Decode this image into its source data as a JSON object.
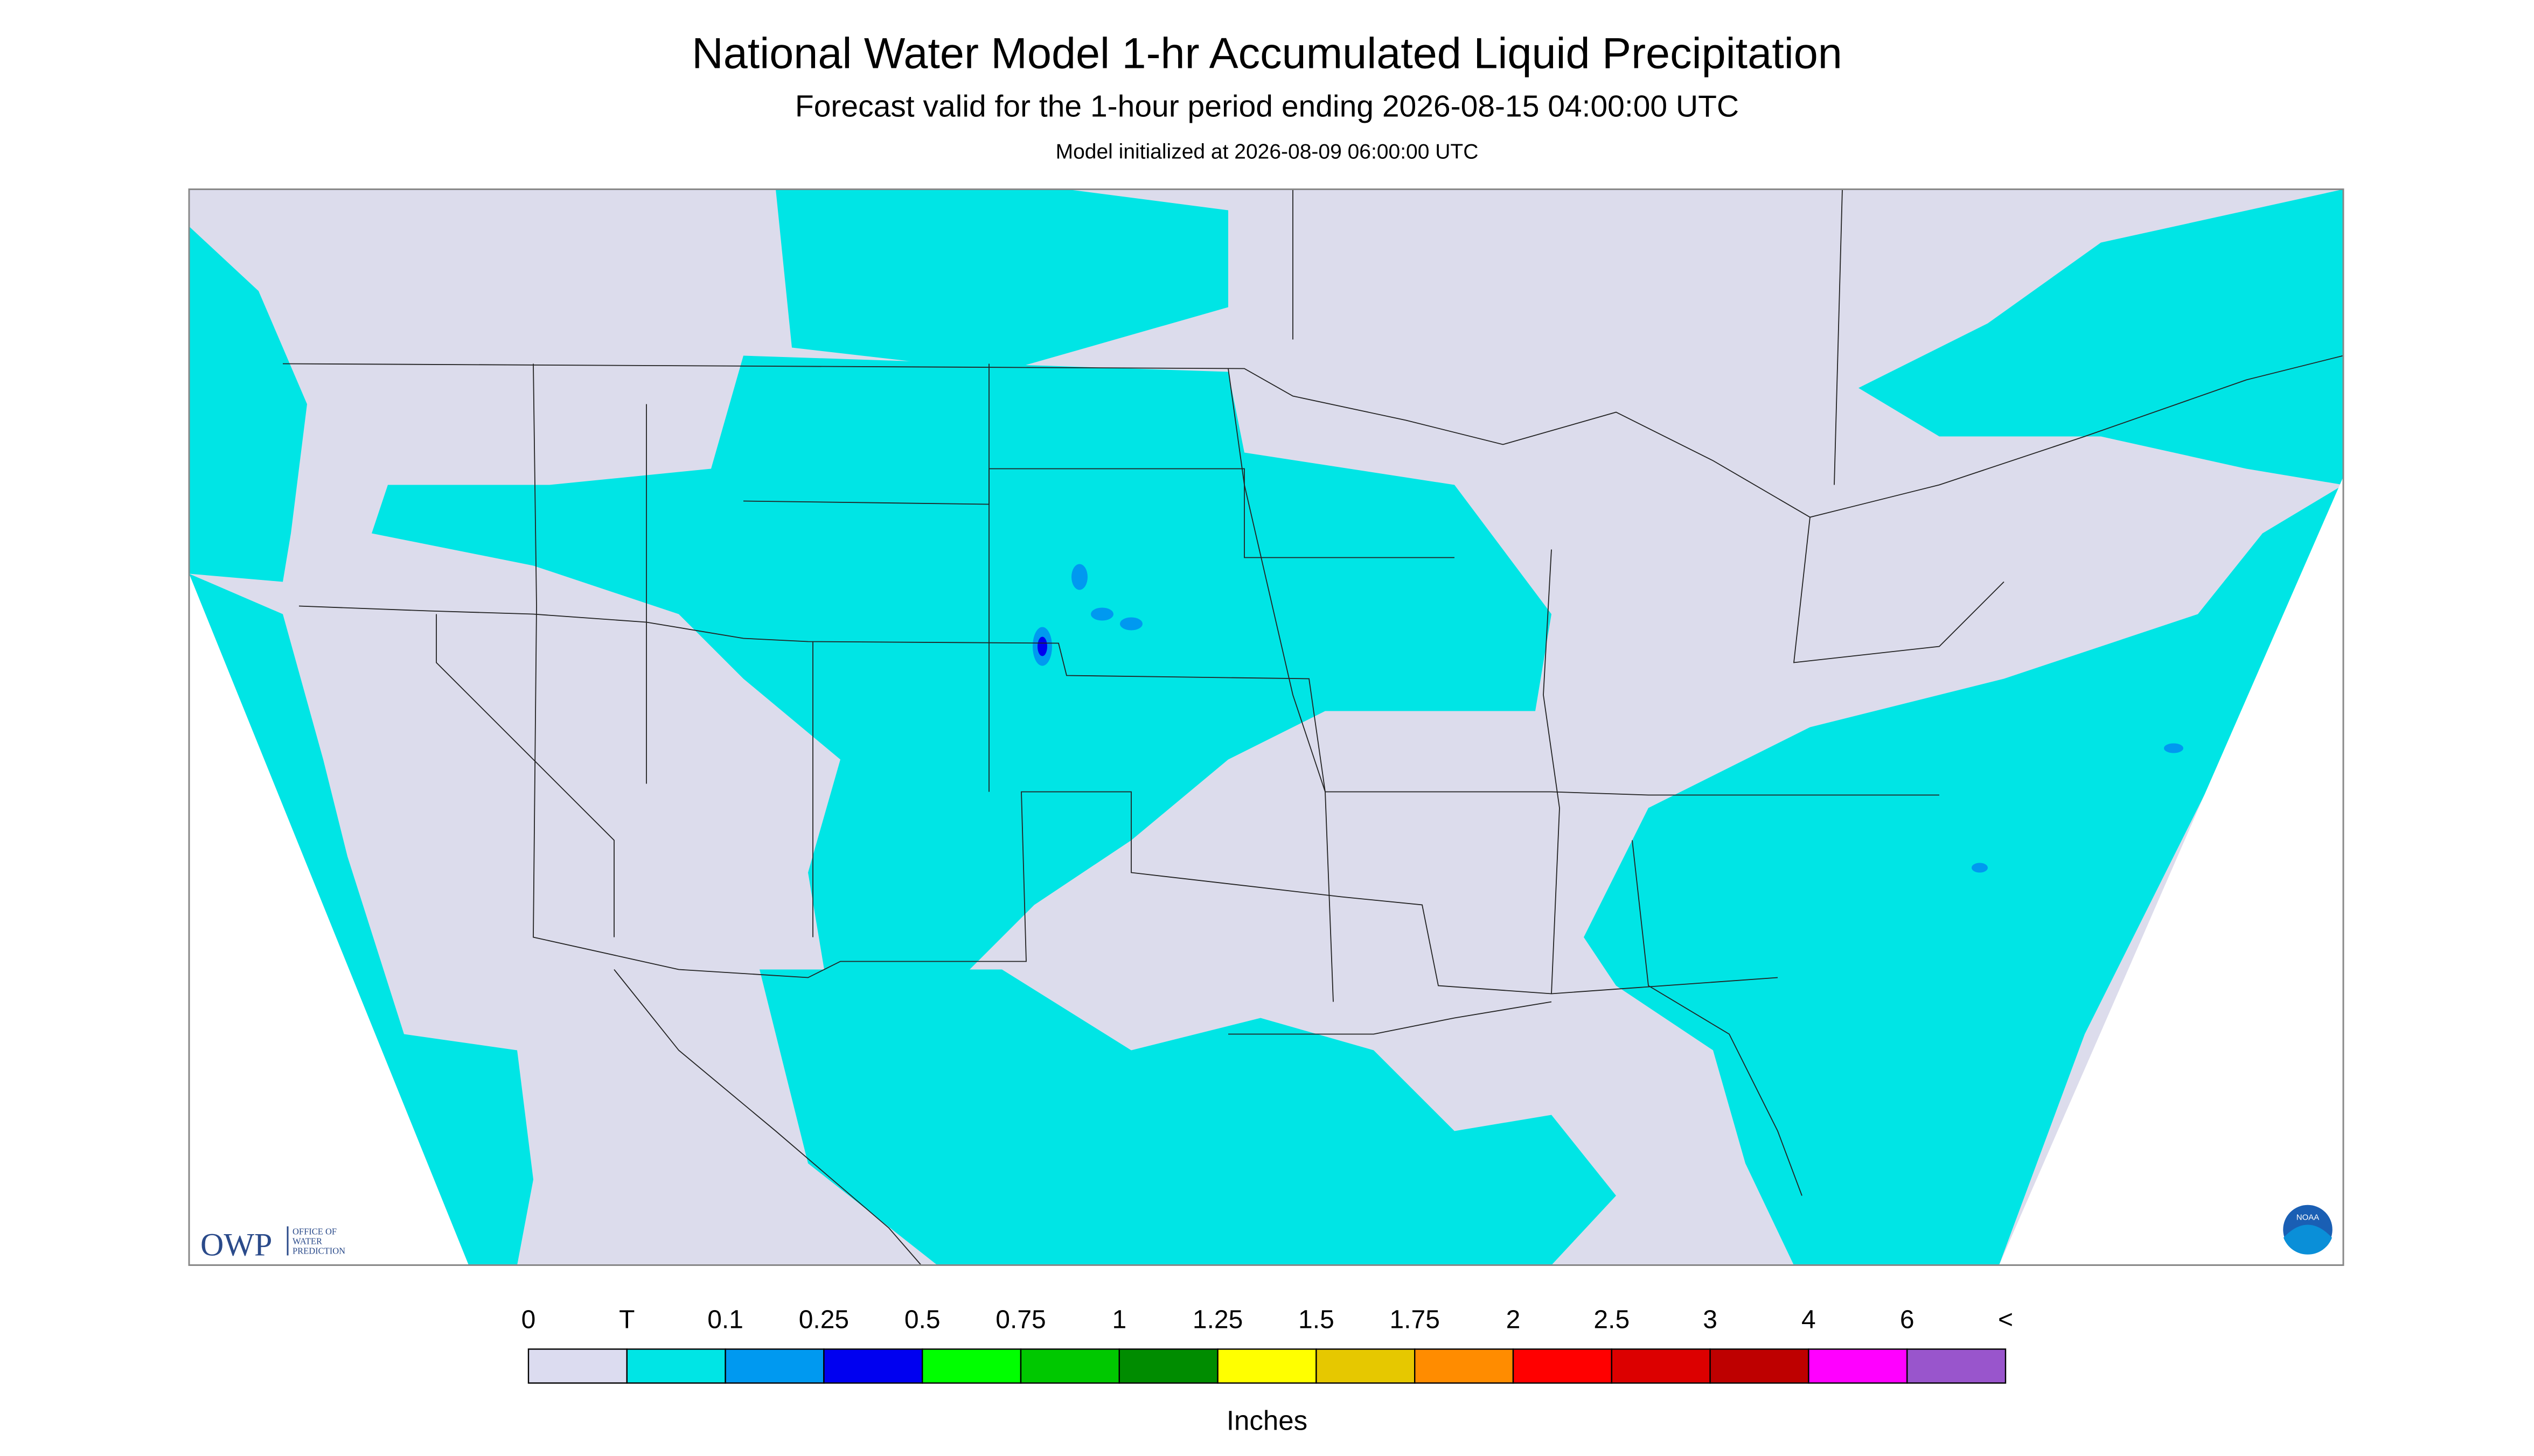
{
  "header": {
    "title": "National Water Model 1-hr Accumulated Liquid Precipitation",
    "subtitle": "Forecast valid for the 1-hour period ending 2026-08-15 04:00:00 UTC",
    "initialized": "Model initialized at 2026-08-09 06:00:00 UTC"
  },
  "logos": {
    "owp": "OWP",
    "owp_office": "OFFICE OF",
    "owp_water": "WATER",
    "owp_prediction": "PREDICTION",
    "noaa": "NOAA"
  },
  "legend": {
    "labels": [
      "0",
      "T",
      "0.1",
      "0.25",
      "0.5",
      "0.75",
      "1",
      "1.25",
      "1.5",
      "1.75",
      "2",
      "2.5",
      "3",
      "4",
      "6",
      "<"
    ],
    "colors": [
      "#dcdcf0",
      "#00e5e5",
      "#0099f0",
      "#0000f0",
      "#00ff00",
      "#00c800",
      "#008c00",
      "#ffff00",
      "#e6c800",
      "#ff8c00",
      "#ff0000",
      "#dc0000",
      "#be0000",
      "#ff00ff",
      "#9955cc"
    ],
    "unit": "Inches"
  }
}
